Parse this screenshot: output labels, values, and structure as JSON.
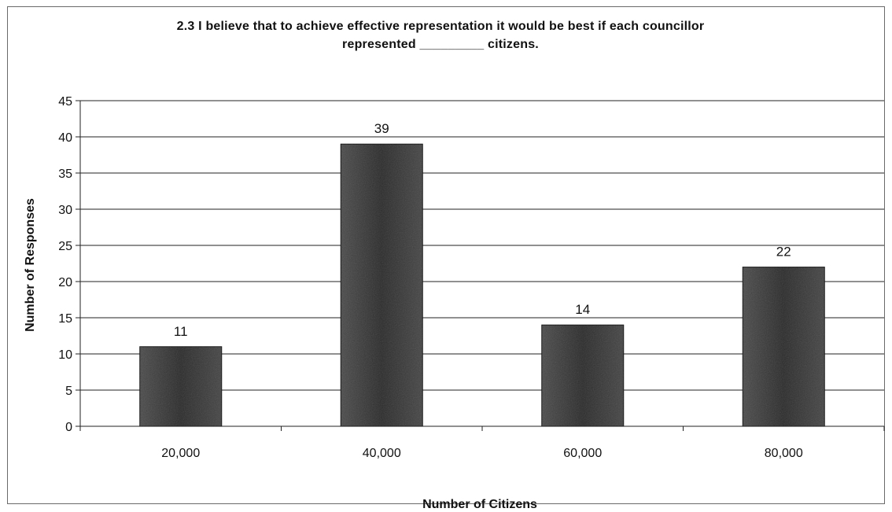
{
  "chart_data": {
    "type": "bar",
    "title": [
      "2.3  I believe that to achieve effective representation it would be best if each councillor",
      "represented _________ citizens."
    ],
    "xlabel": "Number of Citizens",
    "ylabel": "Number of Responses",
    "categories": [
      "20,000",
      "40,000",
      "60,000",
      "80,000"
    ],
    "values": [
      11,
      39,
      14,
      22
    ],
    "data_labels": [
      "11",
      "39",
      "14",
      "22"
    ],
    "ylim": [
      0,
      45
    ],
    "yticks": [
      0,
      5,
      10,
      15,
      20,
      25,
      30,
      35,
      40,
      45
    ],
    "grid": true,
    "legend": "none",
    "bar_color": "#3a3a3a"
  }
}
